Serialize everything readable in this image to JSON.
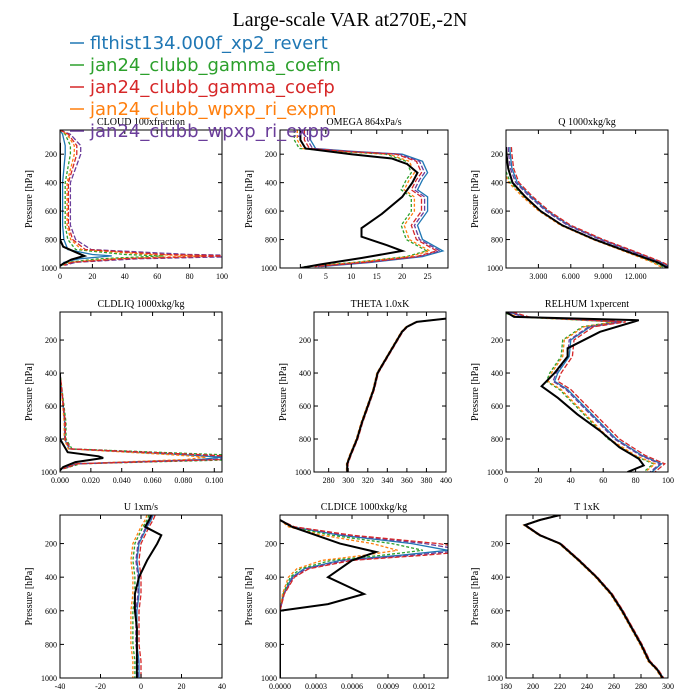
{
  "figure": {
    "title": "Large-scale VAR at270E,-2N"
  },
  "legend": [
    {
      "label": "flthist134.000f_xp2_revert",
      "color": "#1f77b4"
    },
    {
      "label": "jan24_clubb_gamma_coefm",
      "color": "#2ca02c"
    },
    {
      "label": "jan24_clubb_gamma_coefp",
      "color": "#d62728"
    },
    {
      "label": "jan24_clubb_wpxp_ri_expm",
      "color": "#ff7f0e"
    },
    {
      "label": "jan24_clubb_wpxp_ri_expp",
      "color": "#6a3d9a"
    }
  ],
  "control_color": "#000000",
  "chart_data": [
    {
      "type": "line",
      "title": "CLOUD 100xfraction",
      "ylabel": "Pressure [hPa]",
      "xlim": [
        0,
        100
      ],
      "xticks": [
        0,
        20,
        40,
        60,
        80,
        100
      ],
      "xtick_labels": [
        "0",
        "20",
        "40",
        "60",
        "80",
        "100"
      ],
      "ylim": [
        1000,
        30
      ],
      "yticks": [
        200,
        400,
        600,
        800,
        1000
      ],
      "series_shape": [
        [
          0,
          30
        ],
        [
          2,
          60
        ],
        [
          3,
          100
        ],
        [
          4,
          140
        ],
        [
          4,
          200
        ],
        [
          3,
          300
        ],
        [
          2,
          400
        ],
        [
          2,
          500
        ],
        [
          2,
          600
        ],
        [
          2,
          700
        ],
        [
          3,
          800
        ],
        [
          6,
          870
        ],
        [
          25,
          905
        ],
        [
          40,
          915
        ],
        [
          15,
          935
        ],
        [
          3,
          960
        ],
        [
          1,
          980
        ]
      ],
      "control_shape": [
        [
          0,
          120
        ],
        [
          0,
          140
        ],
        [
          0,
          200
        ],
        [
          0,
          300
        ],
        [
          0,
          400
        ],
        [
          0,
          500
        ],
        [
          0,
          600
        ],
        [
          0,
          700
        ],
        [
          0,
          800
        ],
        [
          2,
          850
        ],
        [
          12,
          900
        ],
        [
          15,
          915
        ],
        [
          7,
          940
        ],
        [
          2,
          970
        ],
        [
          0,
          985
        ]
      ],
      "spread": [
        0.8,
        1.6,
        2.6,
        2.2,
        3.2
      ],
      "hint": "spread_x_prop"
    },
    {
      "type": "line",
      "title": "OMEGA  864xPa/s",
      "ylabel": "Pressure [hPa]",
      "xlim": [
        -4,
        29
      ],
      "xticks": [
        0,
        5,
        10,
        15,
        20,
        25
      ],
      "xtick_labels": [
        "0",
        "5",
        "10",
        "15",
        "20",
        "25"
      ],
      "ylim": [
        1000,
        30
      ],
      "yticks": [
        200,
        400,
        600,
        800,
        1000
      ],
      "series_shape": [
        [
          0,
          30
        ],
        [
          0,
          100
        ],
        [
          1,
          160
        ],
        [
          8,
          180
        ],
        [
          18,
          200
        ],
        [
          22,
          250
        ],
        [
          23,
          330
        ],
        [
          22,
          380
        ],
        [
          21,
          450
        ],
        [
          23,
          500
        ],
        [
          23,
          600
        ],
        [
          21,
          700
        ],
        [
          22,
          800
        ],
        [
          26,
          880
        ],
        [
          22,
          920
        ],
        [
          12,
          960
        ],
        [
          2,
          990
        ]
      ],
      "control_shape": [
        [
          0,
          30
        ],
        [
          0,
          100
        ],
        [
          1,
          160
        ],
        [
          10,
          200
        ],
        [
          18,
          230
        ],
        [
          21,
          270
        ],
        [
          23,
          330
        ],
        [
          22,
          400
        ],
        [
          20,
          500
        ],
        [
          16,
          620
        ],
        [
          12,
          720
        ],
        [
          12,
          780
        ],
        [
          17,
          840
        ],
        [
          20,
          880
        ],
        [
          12,
          930
        ],
        [
          4,
          975
        ],
        [
          0,
          1000
        ]
      ],
      "spread": [
        2.0,
        -1.2,
        0.8,
        -0.6,
        1.4
      ],
      "hint": "spread_x_abs"
    },
    {
      "type": "line",
      "title": "Q  1000xkg/kg",
      "ylabel": "Pressure [hPa]",
      "xlim": [
        0,
        15
      ],
      "xticks": [
        3,
        6,
        9,
        12
      ],
      "xtick_labels": [
        "3.000",
        "6.000",
        "9.000",
        "12.000"
      ],
      "ylim": [
        1000,
        30
      ],
      "yticks": [
        200,
        400,
        600,
        800,
        1000
      ],
      "series_shape": [
        [
          0,
          150
        ],
        [
          0.05,
          200
        ],
        [
          0.2,
          300
        ],
        [
          0.7,
          400
        ],
        [
          2,
          500
        ],
        [
          3.5,
          600
        ],
        [
          5.5,
          700
        ],
        [
          8.5,
          800
        ],
        [
          12,
          900
        ],
        [
          14,
          960
        ],
        [
          15,
          1000
        ]
      ],
      "control_shape": [
        [
          0,
          150
        ],
        [
          0.05,
          200
        ],
        [
          0.2,
          300
        ],
        [
          0.6,
          400
        ],
        [
          1.8,
          500
        ],
        [
          3.2,
          600
        ],
        [
          5.2,
          700
        ],
        [
          8.2,
          800
        ],
        [
          11.8,
          900
        ],
        [
          14,
          960
        ],
        [
          15,
          1000
        ]
      ],
      "spread": [
        0.35,
        -0.3,
        0.5,
        -0.45,
        0.2
      ],
      "hint": "spread_x_abs"
    },
    {
      "type": "line",
      "title": "CLDLIQ  1000xkg/kg",
      "ylabel": "Pressure [hPa]",
      "xlim": [
        0,
        0.105
      ],
      "xticks": [
        0,
        0.02,
        0.04,
        0.06,
        0.08,
        0.1
      ],
      "xtick_labels": [
        "0.000",
        "0.020",
        "0.040",
        "0.060",
        "0.080",
        "0.100"
      ],
      "ylim": [
        1000,
        30
      ],
      "yticks": [
        200,
        400,
        600,
        800,
        1000
      ],
      "series_shape": [
        [
          0,
          400
        ],
        [
          0.001,
          500
        ],
        [
          0.002,
          600
        ],
        [
          0.003,
          700
        ],
        [
          0.003,
          800
        ],
        [
          0.006,
          860
        ],
        [
          0.08,
          895
        ],
        [
          0.105,
          910
        ],
        [
          0.09,
          925
        ],
        [
          0.01,
          950
        ],
        [
          0.002,
          980
        ]
      ],
      "control_shape": [
        [
          0,
          400
        ],
        [
          0,
          600
        ],
        [
          0,
          800
        ],
        [
          0.005,
          880
        ],
        [
          0.025,
          905
        ],
        [
          0.028,
          915
        ],
        [
          0.01,
          940
        ],
        [
          0.002,
          970
        ],
        [
          0,
          990
        ]
      ],
      "spread": [
        1.0,
        1.3,
        1.15,
        0.9,
        1.1
      ],
      "hint": "spread_x_prop"
    },
    {
      "type": "line",
      "title": "THETA  1.0xK",
      "ylabel": "Pressure [hPa]",
      "xlim": [
        265,
        400
      ],
      "xticks": [
        280,
        300,
        320,
        340,
        360,
        380,
        400
      ],
      "xtick_labels": [
        "280",
        "300",
        "320",
        "340",
        "360",
        "380",
        "400"
      ],
      "ylim": [
        1000,
        30
      ],
      "yticks": [
        200,
        400,
        600,
        800,
        1000
      ],
      "series_shape": [
        [
          400,
          70
        ],
        [
          370,
          90
        ],
        [
          360,
          120
        ],
        [
          355,
          150
        ],
        [
          350,
          200
        ],
        [
          345,
          250
        ],
        [
          340,
          300
        ],
        [
          335,
          350
        ],
        [
          330,
          400
        ],
        [
          326,
          500
        ],
        [
          320,
          600
        ],
        [
          314,
          700
        ],
        [
          309,
          800
        ],
        [
          302,
          900
        ],
        [
          299,
          950
        ],
        [
          299,
          1000
        ]
      ],
      "control_shape": [
        [
          400,
          70
        ],
        [
          370,
          90
        ],
        [
          360,
          120
        ],
        [
          355,
          150
        ],
        [
          350,
          200
        ],
        [
          345,
          250
        ],
        [
          340,
          300
        ],
        [
          335,
          350
        ],
        [
          330,
          400
        ],
        [
          326,
          500
        ],
        [
          320,
          600
        ],
        [
          314,
          700
        ],
        [
          309,
          800
        ],
        [
          302,
          900
        ],
        [
          299,
          950
        ],
        [
          299,
          1000
        ]
      ],
      "spread": [
        0.4,
        -0.4,
        0.8,
        -0.8,
        0.2
      ],
      "hint": "spread_x_abs"
    },
    {
      "type": "line",
      "title": "RELHUM  1xpercent",
      "ylabel": "Pressure [hPa]",
      "xlim": [
        0,
        100
      ],
      "xticks": [
        0,
        20,
        40,
        60,
        80,
        100
      ],
      "xtick_labels": [
        "0",
        "20",
        "40",
        "60",
        "80",
        "100"
      ],
      "ylim": [
        1000,
        30
      ],
      "yticks": [
        200,
        400,
        600,
        800,
        1000
      ],
      "series_shape": [
        [
          0,
          30
        ],
        [
          10,
          60
        ],
        [
          70,
          90
        ],
        [
          50,
          120
        ],
        [
          38,
          200
        ],
        [
          37,
          300
        ],
        [
          30,
          400
        ],
        [
          28,
          450
        ],
        [
          36,
          500
        ],
        [
          46,
          600
        ],
        [
          56,
          700
        ],
        [
          66,
          800
        ],
        [
          82,
          900
        ],
        [
          94,
          950
        ],
        [
          88,
          1000
        ]
      ],
      "control_shape": [
        [
          0,
          30
        ],
        [
          5,
          60
        ],
        [
          82,
          80
        ],
        [
          58,
          150
        ],
        [
          38,
          250
        ],
        [
          38,
          300
        ],
        [
          30,
          400
        ],
        [
          22,
          480
        ],
        [
          32,
          550
        ],
        [
          44,
          650
        ],
        [
          58,
          750
        ],
        [
          70,
          850
        ],
        [
          82,
          920
        ],
        [
          85,
          960
        ],
        [
          75,
          1000
        ]
      ],
      "spread": [
        2.0,
        -3.0,
        4.0,
        -2.0,
        1.0
      ],
      "hint": "spread_x_abs"
    },
    {
      "type": "line",
      "title": "U  1xm/s",
      "ylabel": "Pressure [hPa]",
      "xlim": [
        -40,
        40
      ],
      "xticks": [
        -40,
        -20,
        0,
        20,
        40
      ],
      "xtick_labels": [
        "-40",
        "-20",
        "0",
        "20",
        "40"
      ],
      "ylim": [
        1000,
        30
      ],
      "yticks": [
        200,
        400,
        600,
        800,
        1000
      ],
      "series_shape": [
        [
          5,
          30
        ],
        [
          4,
          60
        ],
        [
          2,
          100
        ],
        [
          -2,
          200
        ],
        [
          -3,
          300
        ],
        [
          -2,
          400
        ],
        [
          -2,
          500
        ],
        [
          -3,
          600
        ],
        [
          -3,
          700
        ],
        [
          -3,
          800
        ],
        [
          -2,
          900
        ],
        [
          -2,
          1000
        ]
      ],
      "control_shape": [
        [
          5,
          30
        ],
        [
          4,
          60
        ],
        [
          2,
          100
        ],
        [
          10,
          150
        ],
        [
          8,
          200
        ],
        [
          3,
          300
        ],
        [
          -1,
          400
        ],
        [
          -3,
          500
        ],
        [
          -3,
          600
        ],
        [
          -2,
          700
        ],
        [
          -2,
          800
        ],
        [
          -2,
          900
        ],
        [
          -2,
          1000
        ]
      ],
      "spread": [
        1.0,
        -1.0,
        2.0,
        -2.0,
        0.5
      ],
      "hint": "spread_x_abs"
    },
    {
      "type": "line",
      "title": "CLDICE  1000xkg/kg",
      "ylabel": "Pressure [hPa]",
      "xlim": [
        0,
        0.0014
      ],
      "xticks": [
        0,
        0.0003,
        0.0006,
        0.0009,
        0.0012
      ],
      "xtick_labels": [
        "0.0000",
        "0.0003",
        "0.0006",
        "0.0009",
        "0.0012"
      ],
      "ylim": [
        1000,
        30
      ],
      "yticks": [
        200,
        400,
        600,
        800,
        1000
      ],
      "series_shape": [
        [
          0,
          60
        ],
        [
          0.0001,
          100
        ],
        [
          0.0005,
          150
        ],
        [
          0.0011,
          200
        ],
        [
          0.0014,
          240
        ],
        [
          0.001,
          270
        ],
        [
          0.0005,
          300
        ],
        [
          0.0002,
          350
        ],
        [
          0.0001,
          400
        ],
        [
          3e-05,
          500
        ],
        [
          0,
          600
        ],
        [
          0,
          800
        ],
        [
          0,
          1000
        ]
      ],
      "control_shape": [
        [
          0,
          60
        ],
        [
          0.0001,
          100
        ],
        [
          0.0003,
          150
        ],
        [
          0.0005,
          200
        ],
        [
          0.0008,
          250
        ],
        [
          0.0006,
          300
        ],
        [
          0.0004,
          400
        ],
        [
          0.0007,
          500
        ],
        [
          0.0004,
          560
        ],
        [
          0,
          600
        ],
        [
          0,
          800
        ],
        [
          0,
          1000
        ]
      ],
      "spread": [
        1.0,
        0.85,
        1.2,
        0.7,
        1.1
      ],
      "hint": "spread_x_prop"
    },
    {
      "type": "line",
      "title": "T  1xK",
      "ylabel": "Pressure [hPa]",
      "xlim": [
        180,
        300
      ],
      "xticks": [
        180,
        200,
        220,
        240,
        260,
        280,
        300
      ],
      "xtick_labels": [
        "180",
        "200",
        "220",
        "240",
        "260",
        "280",
        "300"
      ],
      "ylim": [
        1000,
        30
      ],
      "yticks": [
        200,
        400,
        600,
        800,
        1000
      ],
      "series_shape": [
        [
          220,
          30
        ],
        [
          205,
          60
        ],
        [
          194,
          90
        ],
        [
          205,
          150
        ],
        [
          220,
          200
        ],
        [
          234,
          300
        ],
        [
          247,
          400
        ],
        [
          258,
          500
        ],
        [
          266,
          600
        ],
        [
          273,
          700
        ],
        [
          280,
          800
        ],
        [
          286,
          900
        ],
        [
          292,
          950
        ],
        [
          296,
          1000
        ]
      ],
      "control_shape": [
        [
          220,
          30
        ],
        [
          205,
          60
        ],
        [
          194,
          90
        ],
        [
          205,
          150
        ],
        [
          220,
          200
        ],
        [
          234,
          300
        ],
        [
          247,
          400
        ],
        [
          258,
          500
        ],
        [
          266,
          600
        ],
        [
          273,
          700
        ],
        [
          280,
          800
        ],
        [
          286,
          900
        ],
        [
          292,
          950
        ],
        [
          296,
          1000
        ]
      ],
      "spread": [
        0.5,
        -0.5,
        0.8,
        -0.8,
        0.2
      ],
      "hint": "spread_x_abs"
    }
  ]
}
